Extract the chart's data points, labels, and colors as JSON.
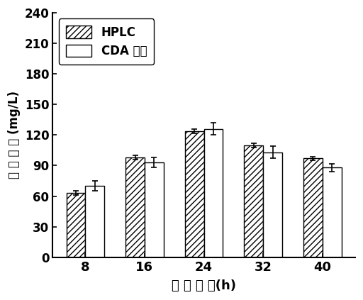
{
  "time_points": [
    8,
    16,
    24,
    32,
    40
  ],
  "hplc_values": [
    63,
    98,
    124,
    110,
    97
  ],
  "cda_values": [
    70,
    93,
    126,
    103,
    88
  ],
  "hplc_errors": [
    2,
    2,
    2,
    2,
    2
  ],
  "cda_errors": [
    5,
    5,
    6,
    6,
    4
  ],
  "ylabel_chinese": "胞 苷 浓 度 (mg/L)",
  "xlabel_cn": "发 酵 时 间",
  "xlabel_en": "(h)",
  "ylim": [
    0,
    240
  ],
  "yticks": [
    0,
    30,
    60,
    90,
    120,
    150,
    180,
    210,
    240
  ],
  "legend_hplc": "HPLC",
  "legend_cda": "CDA 检测",
  "bar_width": 0.32,
  "hatch_pattern": "////",
  "hplc_color": "white",
  "cda_color": "white",
  "edge_color": "black",
  "background_color": "white"
}
